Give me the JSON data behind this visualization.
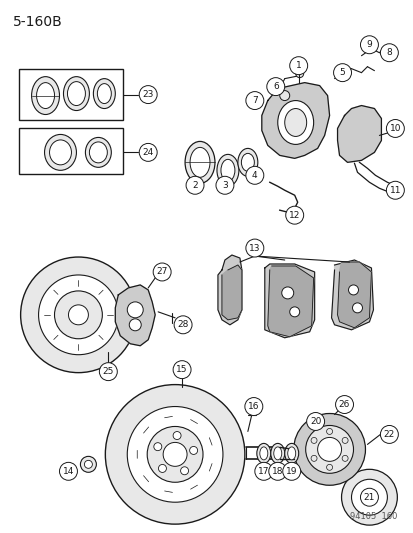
{
  "title": "5-160B",
  "watermark": "94105  160",
  "bg_color": "#ffffff",
  "line_color": "#1a1a1a",
  "fill_light": "#e8e8e8",
  "fill_mid": "#cccccc",
  "fill_dark": "#aaaaaa"
}
